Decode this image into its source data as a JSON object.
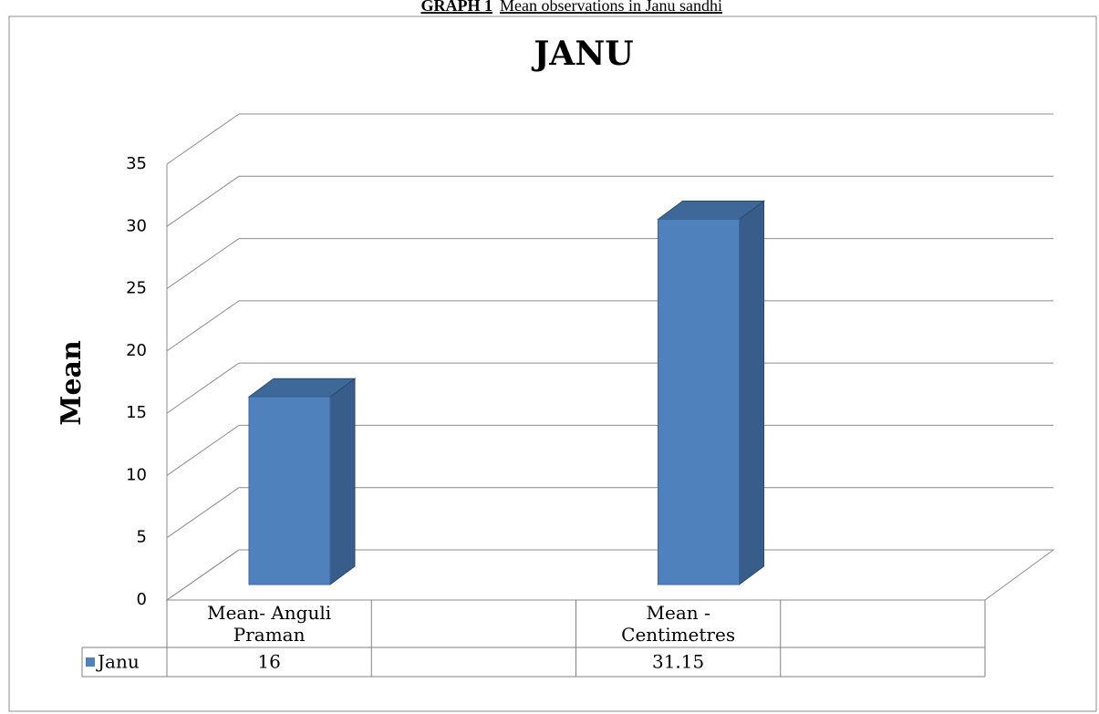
{
  "caption": {
    "label": "GRAPH 1",
    "text": "Mean observations in Janu sandhi"
  },
  "chart_data": {
    "type": "bar3d",
    "title": "JANU",
    "y_label": "Mean",
    "categories": [
      "Mean- Anguli Praman",
      null,
      "Mean - Centimetres",
      null
    ],
    "series": [
      {
        "name": "Janu",
        "color": "#4f81bd",
        "values": [
          16,
          null,
          31.15,
          null
        ]
      }
    ],
    "ylim": [
      0,
      35
    ],
    "yticks": [
      0,
      5,
      10,
      15,
      20,
      25,
      30,
      35
    ],
    "grid": true,
    "data_table": true
  }
}
